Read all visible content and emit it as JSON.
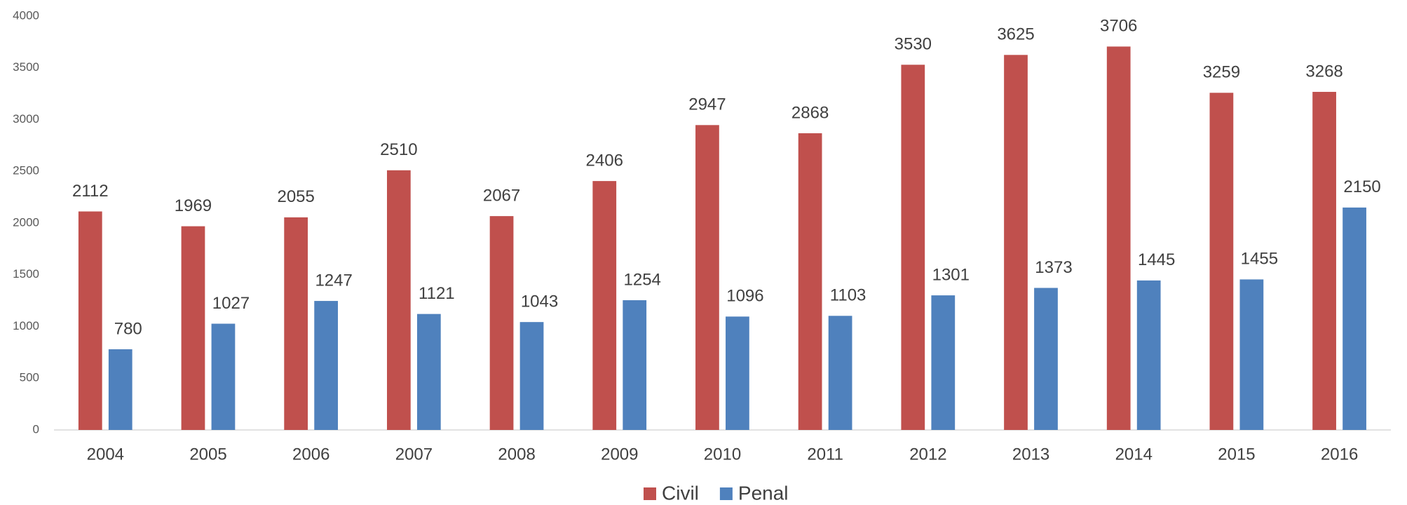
{
  "chart_data": {
    "type": "bar",
    "categories": [
      "2004",
      "2005",
      "2006",
      "2007",
      "2008",
      "2009",
      "2010",
      "2011",
      "2012",
      "2013",
      "2014",
      "2015",
      "2016"
    ],
    "series": [
      {
        "name": "Civil",
        "color": "#c0504d",
        "values": [
          2112,
          1969,
          2055,
          2510,
          2067,
          2406,
          2947,
          2868,
          3530,
          3625,
          3706,
          3259,
          3268
        ]
      },
      {
        "name": "Penal",
        "color": "#4f81bd",
        "values": [
          780,
          1027,
          1247,
          1121,
          1043,
          1254,
          1096,
          1103,
          1301,
          1373,
          1445,
          1455,
          2150
        ]
      }
    ],
    "ylim": [
      0,
      4000
    ],
    "yticks": [
      0,
      500,
      1000,
      1500,
      2000,
      2500,
      3000,
      3500,
      4000
    ],
    "grid": false,
    "legend": "bottom"
  }
}
